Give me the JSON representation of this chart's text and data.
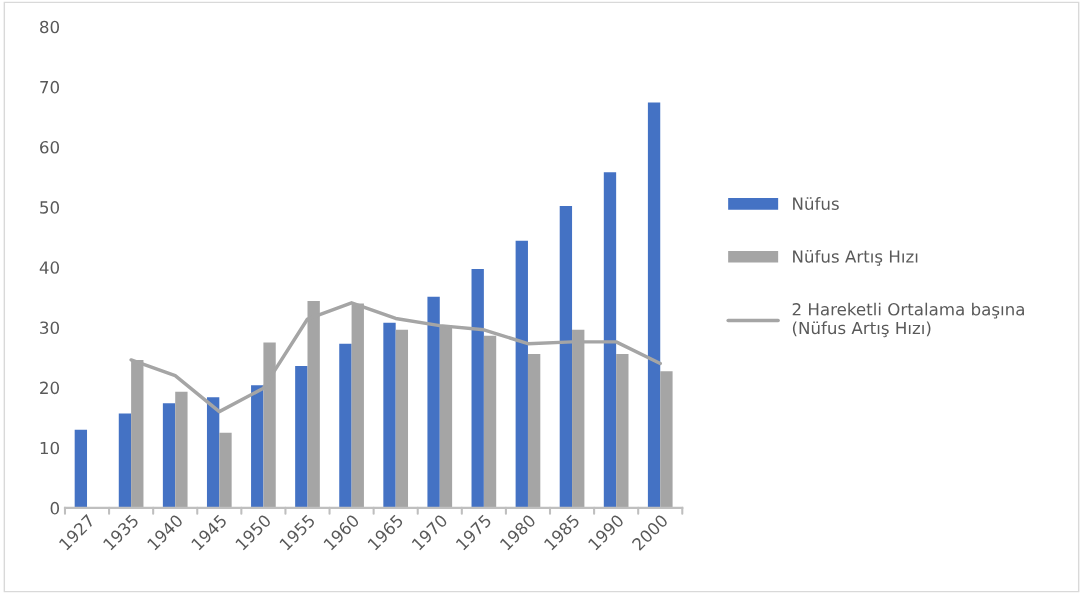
{
  "chart_data": {
    "type": "bar",
    "categories": [
      "1927",
      "1935",
      "1940",
      "1945",
      "1950",
      "1955",
      "1960",
      "1965",
      "1970",
      "1975",
      "1980",
      "1985",
      "1990",
      "2000"
    ],
    "series": [
      {
        "name": "Nüfus",
        "color": "#4472c4",
        "values": [
          13.0,
          15.7,
          17.4,
          18.4,
          20.4,
          23.6,
          27.3,
          30.8,
          35.1,
          39.7,
          44.4,
          50.2,
          55.8,
          67.4
        ]
      },
      {
        "name": "Nüfus Artış Hızı",
        "color": "#a5a5a5",
        "values": [
          null,
          24.6,
          19.3,
          12.5,
          27.5,
          34.4,
          34.0,
          29.6,
          30.3,
          28.6,
          25.6,
          29.6,
          25.6,
          22.7
        ]
      },
      {
        "name": "2 Hareketli Ortalama başına\n(Nüfus Artış Hızı)",
        "type": "line",
        "color": "#a5a5a5",
        "values": [
          null,
          24.6,
          22.0,
          16.0,
          19.9,
          31.4,
          34.1,
          31.5,
          30.3,
          29.6,
          27.3,
          27.6,
          27.6,
          24.0
        ]
      }
    ],
    "ylim": [
      0,
      80
    ],
    "yticks": [
      0,
      10,
      20,
      30,
      40,
      50,
      60,
      70,
      80
    ],
    "grid": false,
    "legend": "right"
  }
}
